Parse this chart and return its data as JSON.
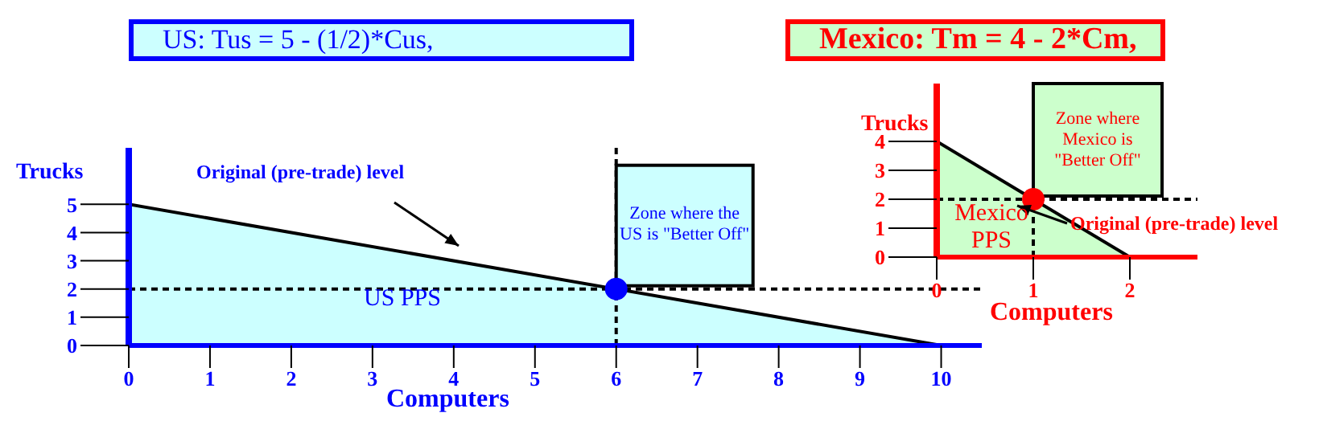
{
  "chart_data": [
    {
      "type": "area",
      "title": "US: Tus = 5 - (1/2)*Cus,",
      "xlabel": "Computers",
      "ylabel": "Trucks",
      "x": [
        0,
        10
      ],
      "series": [
        {
          "name": "US PPS",
          "color": "#ccffff",
          "values": [
            5,
            0
          ]
        },
        {
          "type": "scatter",
          "x": [
            6
          ],
          "values": [
            2
          ],
          "color": "#0000ff"
        }
      ],
      "xlim": [
        0,
        10.5
      ],
      "xticks": [
        0,
        1,
        2,
        3,
        4,
        5,
        6,
        7,
        8,
        9,
        10
      ],
      "ylim": [
        0,
        7
      ],
      "yticks": [
        0,
        1,
        2,
        3,
        4,
        5
      ],
      "ref_lines": [
        {
          "axis": "x",
          "value": 6,
          "line_style": "dashed"
        },
        {
          "axis": "y",
          "value": 2,
          "line_style": "dashed"
        }
      ],
      "annotations": [
        "Original (pre-trade) level",
        "Zone where the US is \"Better Off\""
      ]
    },
    {
      "type": "area",
      "title": "Mexico:  Tm = 4 - 2*Cm,",
      "xlabel": "Computers",
      "ylabel": "Trucks",
      "x": [
        0,
        2
      ],
      "series": [
        {
          "name": "Mexico PPS",
          "color": "#ccffcc",
          "values": [
            4,
            0
          ]
        },
        {
          "type": "scatter",
          "x": [
            1
          ],
          "values": [
            2
          ],
          "color": "#ff0000"
        }
      ],
      "xlim": [
        0,
        2.7
      ],
      "xticks": [
        0,
        1,
        2
      ],
      "ylim": [
        0,
        6
      ],
      "yticks": [
        0,
        1,
        2,
        3,
        4
      ],
      "ref_lines": [
        {
          "axis": "x",
          "value": 1,
          "line_style": "dashed"
        },
        {
          "axis": "y",
          "value": 2,
          "line_style": "dashed"
        }
      ],
      "annotations": [
        "Original (pre-trade) level",
        "Zone where Mexico is \"Better Off\""
      ]
    }
  ]
}
